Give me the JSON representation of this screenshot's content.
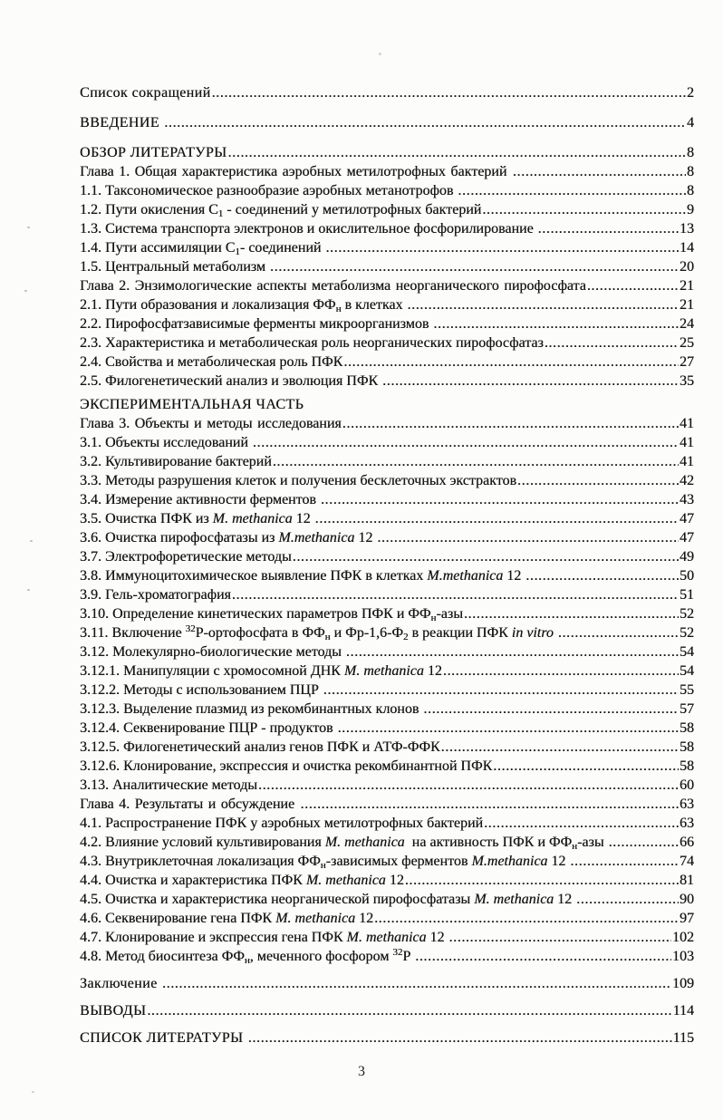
{
  "page": {
    "number": "3"
  },
  "toc": {
    "entries": [
      {
        "type": "section",
        "segments": [
          {
            "t": "Список сокращений"
          }
        ],
        "page": "2"
      },
      {
        "type": "section",
        "gap": 3,
        "segments": [
          {
            "t": "ВВЕДЕНИЕ "
          }
        ],
        "page": "4"
      },
      {
        "type": "section",
        "gap": 3,
        "segments": [
          {
            "t": "ОБЗОР ЛИТЕРАТУРЫ"
          }
        ],
        "page": "8"
      },
      {
        "type": "chapter",
        "segments": [
          {
            "t": "Глава 1. Общая характеристика аэробных метилотрофных бактерий "
          }
        ],
        "page": "8"
      },
      {
        "segments": [
          {
            "t": "1.1. Таксономическое разнообразие аэробных метанотрофов "
          }
        ],
        "page": "8"
      },
      {
        "segments": [
          {
            "t": "1.2. Пути окисления С"
          },
          {
            "t": "1",
            "s": "sub"
          },
          {
            "t": " - соединений у метилотрофных бактерий"
          }
        ],
        "page": "9"
      },
      {
        "segments": [
          {
            "t": "1.3. Система транспорта электронов и окислительное фосфорилирование "
          }
        ],
        "page": "13"
      },
      {
        "segments": [
          {
            "t": "1.4. Пути ассимиляции С"
          },
          {
            "t": "1",
            "s": "sub"
          },
          {
            "t": "- соединений "
          }
        ],
        "page": "14"
      },
      {
        "segments": [
          {
            "t": "1.5. Центральный метаболизм "
          }
        ],
        "page": "20"
      },
      {
        "type": "chapter",
        "segments": [
          {
            "t": "Глава 2. Энзимологические аспекты метаболизма неорганического пирофосфата"
          }
        ],
        "page": "21"
      },
      {
        "segments": [
          {
            "t": "2.1. Пути образования и локализация ФФ"
          },
          {
            "t": "н",
            "s": "sub"
          },
          {
            "t": " в клетках "
          }
        ],
        "page": "21"
      },
      {
        "segments": [
          {
            "t": "2.2. Пирофосфатзависимые ферменты микроорганизмов "
          }
        ],
        "page": "24"
      },
      {
        "segments": [
          {
            "t": "2.3. Характеристика и метаболическая роль неорганических пирофосфатаз"
          }
        ],
        "page": "25"
      },
      {
        "segments": [
          {
            "t": "2.4. Свойства и метаболическая роль ПФК"
          }
        ],
        "page": "27"
      },
      {
        "segments": [
          {
            "t": "2.5. Филогенетический анализ и эволюция ПФК "
          }
        ],
        "page": "35"
      },
      {
        "type": "section",
        "gap": 1,
        "segments": [
          {
            "t": "ЭКСПЕРИМЕНТАЛЬНАЯ ЧАСТЬ"
          }
        ],
        "page": ""
      },
      {
        "type": "chapter",
        "segments": [
          {
            "t": "Глава 3. Объекты и методы исследования"
          }
        ],
        "page": "41"
      },
      {
        "segments": [
          {
            "t": "3.1. Объекты исследований "
          }
        ],
        "page": "41"
      },
      {
        "segments": [
          {
            "t": "3.2. Культивирование бактерий"
          }
        ],
        "page": "41"
      },
      {
        "segments": [
          {
            "t": "3.3. Методы разрушения клеток и получения бесклеточных экстрактов"
          }
        ],
        "page": "42"
      },
      {
        "segments": [
          {
            "t": "3.4. Измерение активности ферментов "
          }
        ],
        "page": "43"
      },
      {
        "segments": [
          {
            "t": "3.5. Очистка ПФК из "
          },
          {
            "t": "M. methanica",
            "s": "i"
          },
          {
            "t": " 12 "
          }
        ],
        "page": "47"
      },
      {
        "segments": [
          {
            "t": "3.6. Очистка пирофосфатазы из "
          },
          {
            "t": "M.methanica",
            "s": "i"
          },
          {
            "t": " 12 "
          }
        ],
        "page": "47"
      },
      {
        "segments": [
          {
            "t": "3.7. Электрофоретические методы"
          }
        ],
        "page": "49"
      },
      {
        "segments": [
          {
            "t": "3.8. Иммуноцитохимическое выявление ПФК в клетках "
          },
          {
            "t": "M.methanica",
            "s": "i"
          },
          {
            "t": " 12 "
          }
        ],
        "page": "50"
      },
      {
        "segments": [
          {
            "t": "3.9. Гель-хроматография"
          }
        ],
        "page": "51"
      },
      {
        "segments": [
          {
            "t": "3.10. Определение кинетических параметров ПФК и ФФ"
          },
          {
            "t": "н",
            "s": "sub"
          },
          {
            "t": "-азы"
          }
        ],
        "page": "52"
      },
      {
        "segments": [
          {
            "t": "3.11. Включение "
          },
          {
            "t": "32",
            "s": "sup"
          },
          {
            "t": "Р-ортофосфата в ФФ"
          },
          {
            "t": "н",
            "s": "sub"
          },
          {
            "t": " и Фр-1,6-Ф"
          },
          {
            "t": "2",
            "s": "sub"
          },
          {
            "t": " в реакции ПФК "
          },
          {
            "t": "in vitro",
            "s": "i"
          },
          {
            "t": " "
          }
        ],
        "page": "52"
      },
      {
        "segments": [
          {
            "t": "3.12. Молекулярно-биологические методы "
          }
        ],
        "page": "54"
      },
      {
        "segments": [
          {
            "t": "3.12.1. Манипуляции с хромосомной ДНК "
          },
          {
            "t": "M. methanica",
            "s": "i"
          },
          {
            "t": " 12"
          }
        ],
        "page": "54"
      },
      {
        "segments": [
          {
            "t": "3.12.2. Методы с использованием ПЦР "
          }
        ],
        "page": "55"
      },
      {
        "segments": [
          {
            "t": "3.12.3. Выделение плазмид из рекомбинантных клонов "
          }
        ],
        "page": "57"
      },
      {
        "segments": [
          {
            "t": "3.12.4. Секвенирование ПЦР - продуктов "
          }
        ],
        "page": "58"
      },
      {
        "segments": [
          {
            "t": "3.12.5. Филогенетический анализ генов ПФК и АТФ-ФФК"
          }
        ],
        "page": "58"
      },
      {
        "segments": [
          {
            "t": "3.12.6. Клонирование, экспрессия и очистка рекомбинантной ПФК"
          }
        ],
        "page": "58"
      },
      {
        "segments": [
          {
            "t": "3.13. Аналитические методы"
          }
        ],
        "page": "60"
      },
      {
        "type": "chapter",
        "segments": [
          {
            "t": "Глава 4. Результаты и обсуждение "
          }
        ],
        "page": "63"
      },
      {
        "segments": [
          {
            "t": "4.1. Распространение ПФК у аэробных метилотрофных бактерий"
          }
        ],
        "page": "63"
      },
      {
        "segments": [
          {
            "t": "4.2. Влияние условий культивирования "
          },
          {
            "t": "M. methanica",
            "s": "i"
          },
          {
            "t": "  на активность ПФК и ФФ"
          },
          {
            "t": "н",
            "s": "sub"
          },
          {
            "t": "-азы "
          }
        ],
        "page": "66"
      },
      {
        "segments": [
          {
            "t": "4.3. Внутриклеточная локализация ФФ"
          },
          {
            "t": "н",
            "s": "sub"
          },
          {
            "t": "-зависимых ферментов "
          },
          {
            "t": "M.methanica",
            "s": "i"
          },
          {
            "t": " 12 "
          }
        ],
        "page": "74"
      },
      {
        "segments": [
          {
            "t": "4.4. Очистка и характеристика ПФК "
          },
          {
            "t": "M. methanica",
            "s": "i"
          },
          {
            "t": " 12"
          }
        ],
        "page": "81"
      },
      {
        "segments": [
          {
            "t": "4.5. Очистка и характеристика неорганической пирофосфатазы "
          },
          {
            "t": "M. methanica",
            "s": "i"
          },
          {
            "t": " 12 "
          }
        ],
        "page": "90"
      },
      {
        "segments": [
          {
            "t": "4.6. Секвенирование гена ПФК "
          },
          {
            "t": "M. methanica",
            "s": "i"
          },
          {
            "t": " 12"
          }
        ],
        "page": "97"
      },
      {
        "segments": [
          {
            "t": "4.7. Клонирование и экспрессия гена ПФК "
          },
          {
            "t": "M. methanica",
            "s": "i"
          },
          {
            "t": " 12 "
          }
        ],
        "page": "102"
      },
      {
        "segments": [
          {
            "t": "4.8. Метод биосинтеза ФФ"
          },
          {
            "t": "н",
            "s": "sub"
          },
          {
            "t": ", меченного фосфором "
          },
          {
            "t": "32",
            "s": "sup"
          },
          {
            "t": "Р "
          }
        ],
        "page": "103"
      },
      {
        "type": "section",
        "gap": 2,
        "segments": [
          {
            "t": "Заключение "
          }
        ],
        "page": "109"
      },
      {
        "type": "section",
        "gap": 2,
        "segments": [
          {
            "t": "ВЫВОДЫ"
          }
        ],
        "page": "114"
      },
      {
        "type": "section",
        "gap": 2,
        "segments": [
          {
            "t": "СПИСОК ЛИТЕРАТУРЫ "
          }
        ],
        "page": "115"
      }
    ]
  }
}
